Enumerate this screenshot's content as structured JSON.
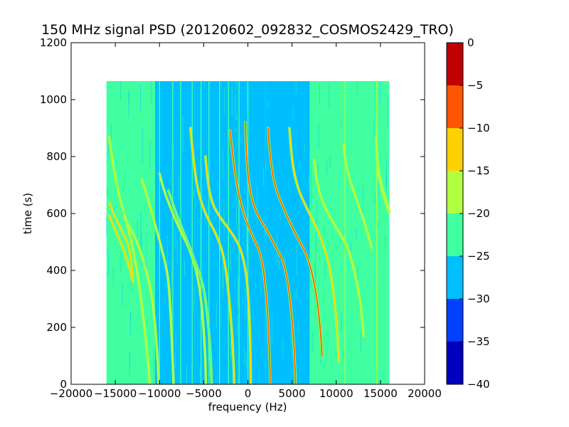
{
  "chart_data": {
    "type": "heatmap",
    "title": "150 MHz signal PSD (20120602_092832_COSMOS2429_TRO)",
    "xlabel": "frequency (Hz)",
    "ylabel": "time (s)",
    "xlim": [
      -20000,
      20000
    ],
    "ylim": [
      0,
      1200
    ],
    "x_ticks": [
      -20000,
      -15000,
      -10000,
      -5000,
      0,
      5000,
      10000,
      15000,
      20000
    ],
    "x_tick_labels": [
      "−20000",
      "−15000",
      "−10000",
      "−5000",
      "0",
      "5000",
      "10000",
      "15000",
      "20000"
    ],
    "y_ticks": [
      0,
      200,
      400,
      600,
      800,
      1000,
      1200
    ],
    "y_tick_labels": [
      "0",
      "200",
      "400",
      "600",
      "800",
      "1000",
      "1200"
    ],
    "data_extent": {
      "x": [
        -16000,
        16000
      ],
      "y": [
        0,
        1065
      ]
    },
    "background_regions": [
      {
        "x": [
          -16000,
          -10500
        ],
        "level": -22.5
      },
      {
        "x": [
          -10500,
          -6000
        ],
        "level": -25.5
      },
      {
        "x": [
          -6000,
          2000
        ],
        "level": -27.5
      },
      {
        "x": [
          2000,
          7000
        ],
        "level": -26.5
      },
      {
        "x": [
          7000,
          16000
        ],
        "level": -22.5
      }
    ],
    "vertical_lines": [
      {
        "x": -13600,
        "level": -24
      },
      {
        "x": -11400,
        "level": -24
      },
      {
        "x": -10000,
        "level": -22
      },
      {
        "x": -8500,
        "level": -20
      },
      {
        "x": -7600,
        "level": -22
      },
      {
        "x": -6300,
        "level": -24
      },
      {
        "x": -5300,
        "level": -22
      },
      {
        "x": -4400,
        "level": -23
      },
      {
        "x": -3200,
        "level": -22
      },
      {
        "x": -2200,
        "level": -24
      },
      {
        "x": -1000,
        "level": -22
      },
      {
        "x": 0,
        "level": -22
      },
      {
        "x": 11000,
        "level": -18
      },
      {
        "x": 14600,
        "level": -18
      }
    ],
    "traces": [
      {
        "points": [
          [
            -15700,
            870
          ],
          [
            -15200,
            760
          ],
          [
            -14500,
            650
          ],
          [
            -13600,
            560
          ],
          [
            -12700,
            430
          ],
          [
            -12200,
            330
          ],
          [
            -11700,
            200
          ],
          [
            -11300,
            80
          ],
          [
            -11100,
            0
          ]
        ],
        "level": -18
      },
      {
        "points": [
          [
            -15700,
            640
          ],
          [
            -15000,
            585
          ],
          [
            -14000,
            525
          ],
          [
            -13400,
            480
          ],
          [
            -13000,
            380
          ]
        ],
        "level": -12
      },
      {
        "points": [
          [
            -15700,
            595
          ],
          [
            -15000,
            540
          ],
          [
            -14100,
            480
          ],
          [
            -13500,
            420
          ],
          [
            -13000,
            360
          ]
        ],
        "level": -12
      },
      {
        "points": [
          [
            -14000,
            590
          ],
          [
            -12500,
            500
          ],
          [
            -11800,
            430
          ],
          [
            -11000,
            340
          ],
          [
            -10500,
            220
          ],
          [
            -10200,
            80
          ],
          [
            -10100,
            0
          ]
        ],
        "level": -18
      },
      {
        "points": [
          [
            -12000,
            720
          ],
          [
            -11200,
            640
          ],
          [
            -10300,
            540
          ],
          [
            -9700,
            470
          ],
          [
            -9000,
            380
          ],
          [
            -8700,
            230
          ],
          [
            -8500,
            80
          ],
          [
            -8400,
            0
          ]
        ],
        "level": -18
      },
      {
        "points": [
          [
            -10000,
            740
          ],
          [
            -9500,
            680
          ],
          [
            -8500,
            600
          ],
          [
            -7500,
            530
          ],
          [
            -6500,
            470
          ],
          [
            -5500,
            360
          ],
          [
            -5000,
            200
          ],
          [
            -4800,
            80
          ],
          [
            -4750,
            0
          ]
        ],
        "level": -18
      },
      {
        "points": [
          [
            -9000,
            680
          ],
          [
            -8000,
            590
          ],
          [
            -7200,
            530
          ],
          [
            -6200,
            450
          ],
          [
            -5000,
            350
          ],
          [
            -4500,
            220
          ],
          [
            -4200,
            100
          ],
          [
            -4100,
            0
          ]
        ],
        "level": -20
      },
      {
        "points": [
          [
            -6500,
            900
          ],
          [
            -6200,
            800
          ],
          [
            -5700,
            680
          ],
          [
            -4700,
            590
          ],
          [
            -3600,
            530
          ],
          [
            -2700,
            450
          ],
          [
            -2200,
            330
          ],
          [
            -1800,
            190
          ],
          [
            -1600,
            60
          ],
          [
            -1550,
            0
          ]
        ],
        "level": -12
      },
      {
        "points": [
          [
            -4800,
            800
          ],
          [
            -4500,
            700
          ],
          [
            -4000,
            630
          ],
          [
            -3000,
            580
          ],
          [
            -2000,
            540
          ],
          [
            -800,
            480
          ],
          [
            -100,
            380
          ],
          [
            200,
            230
          ],
          [
            300,
            100
          ],
          [
            320,
            0
          ]
        ],
        "level": -12
      },
      {
        "points": [
          [
            -2000,
            890
          ],
          [
            -1700,
            800
          ],
          [
            -1200,
            690
          ],
          [
            -500,
            600
          ],
          [
            500,
            520
          ],
          [
            1500,
            460
          ],
          [
            2100,
            320
          ],
          [
            2400,
            150
          ],
          [
            2500,
            50
          ],
          [
            2520,
            0
          ]
        ],
        "level": -7
      },
      {
        "points": [
          [
            -300,
            920
          ],
          [
            -200,
            820
          ],
          [
            100,
            700
          ],
          [
            800,
            610
          ],
          [
            2000,
            550
          ],
          [
            3200,
            480
          ],
          [
            4200,
            420
          ],
          [
            4800,
            300
          ],
          [
            5200,
            150
          ],
          [
            5350,
            50
          ],
          [
            5400,
            0
          ]
        ],
        "level": -7
      },
      {
        "points": [
          [
            2300,
            900
          ],
          [
            2500,
            800
          ],
          [
            3000,
            700
          ],
          [
            4000,
            620
          ],
          [
            5500,
            520
          ],
          [
            6800,
            450
          ],
          [
            7700,
            330
          ],
          [
            8200,
            200
          ],
          [
            8400,
            100
          ]
        ],
        "level": -8
      },
      {
        "points": [
          [
            4700,
            900
          ],
          [
            5000,
            780
          ],
          [
            5600,
            690
          ],
          [
            6800,
            610
          ],
          [
            7800,
            550
          ],
          [
            8800,
            470
          ],
          [
            9600,
            360
          ],
          [
            10100,
            200
          ],
          [
            10300,
            80
          ]
        ],
        "level": -12
      },
      {
        "points": [
          [
            7500,
            790
          ],
          [
            7900,
            690
          ],
          [
            8700,
            620
          ],
          [
            10000,
            550
          ],
          [
            11200,
            490
          ],
          [
            12000,
            410
          ],
          [
            12700,
            300
          ],
          [
            13100,
            170
          ]
        ],
        "level": -15
      },
      {
        "points": [
          [
            10800,
            840
          ],
          [
            11100,
            770
          ],
          [
            11700,
            700
          ],
          [
            12500,
            630
          ],
          [
            13300,
            560
          ],
          [
            14000,
            480
          ]
        ],
        "level": -18
      },
      {
        "points": [
          [
            14500,
            870
          ],
          [
            14700,
            760
          ],
          [
            15200,
            690
          ],
          [
            16000,
            610
          ]
        ],
        "level": -15
      },
      {
        "points": [
          [
            14700,
            750
          ],
          [
            15100,
            690
          ],
          [
            15600,
            640
          ],
          [
            16000,
            600
          ]
        ],
        "level": -15
      }
    ],
    "colorbar": {
      "min": -40,
      "max": 0,
      "ticks": [
        0,
        -5,
        -10,
        -15,
        -20,
        -25,
        -30,
        -35,
        -40
      ],
      "tick_labels": [
        "0",
        "−5",
        "−10",
        "−15",
        "−20",
        "−25",
        "−30",
        "−35",
        "−40"
      ],
      "bands": [
        {
          "range": [
            -40,
            -35
          ],
          "color": "#0000c0"
        },
        {
          "range": [
            -35,
            -30
          ],
          "color": "#0040ff"
        },
        {
          "range": [
            -30,
            -25
          ],
          "color": "#00bfff"
        },
        {
          "range": [
            -25,
            -20
          ],
          "color": "#40ffa0"
        },
        {
          "range": [
            -20,
            -15
          ],
          "color": "#b0ff40"
        },
        {
          "range": [
            -15,
            -10
          ],
          "color": "#ffd000"
        },
        {
          "range": [
            -10,
            -5
          ],
          "color": "#ff5500"
        },
        {
          "range": [
            -5,
            0
          ],
          "color": "#c00000"
        }
      ]
    }
  }
}
